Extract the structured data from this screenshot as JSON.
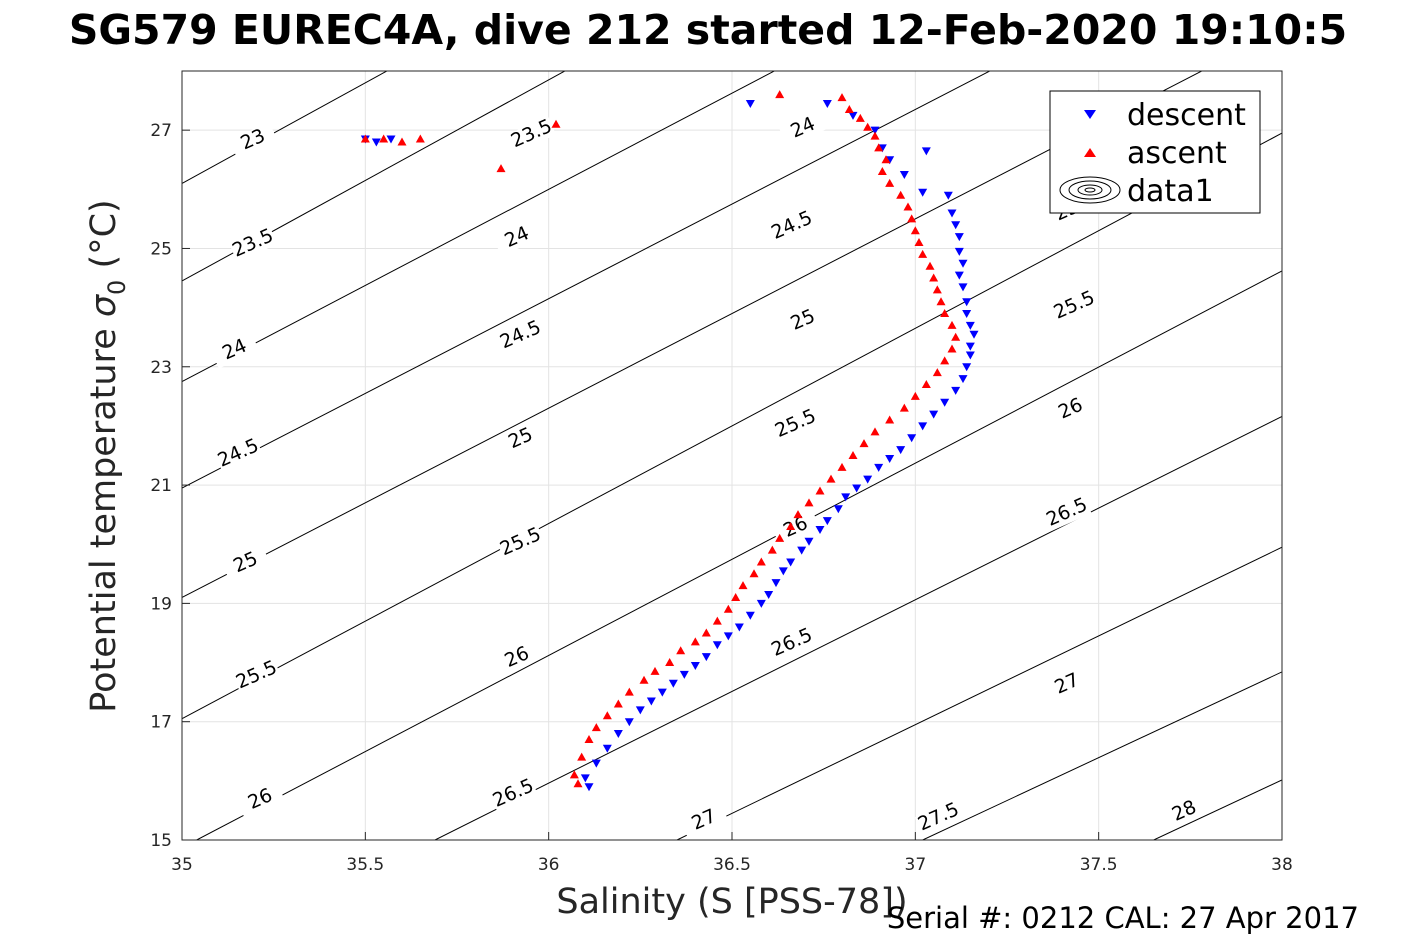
{
  "chart_data": {
    "type": "scatter",
    "title": "SG579 EUREC4A, dive 212 started 12-Feb-2020 19:10:5",
    "xlabel": "Salinity (S [PSS-78])",
    "ylabel_main": "Potential temperature ",
    "ylabel_sigma": "σ",
    "ylabel_sub": "0",
    "ylabel_unit": " (°C)",
    "xlim": [
      35,
      38
    ],
    "ylim": [
      15,
      28
    ],
    "xticks": [
      "35",
      "35.5",
      "36",
      "36.5",
      "37",
      "37.5",
      "38"
    ],
    "yticks": [
      "15",
      "17",
      "19",
      "21",
      "23",
      "25",
      "27"
    ],
    "grid": true,
    "legend_position": "top-right",
    "legend": [
      "descent",
      "ascent",
      "data1"
    ],
    "footer": "Serial #: 0212  CAL: 27 Apr 2017",
    "colors": {
      "descent": "#0000ff",
      "ascent": "#ff0000",
      "contour": "#000000"
    },
    "contour_lines": [
      {
        "level": 23,
        "start": [
          35,
          26.1
        ],
        "slope": 3.4
      },
      {
        "level": 23.5,
        "start": [
          35,
          24.45
        ],
        "slope": 3.4
      },
      {
        "level": 24,
        "start": [
          35,
          22.75
        ],
        "slope": 3.25
      },
      {
        "level": 24.5,
        "start": [
          35,
          20.95
        ],
        "slope": 3.2
      },
      {
        "level": 25,
        "start": [
          35,
          19.1
        ],
        "slope": 3.2
      },
      {
        "level": 25.5,
        "start": [
          35,
          17.05
        ],
        "slope": 3.3
      },
      {
        "level": 26,
        "start": [
          35.04,
          15.0
        ],
        "slope": 3.25
      },
      {
        "level": 26.5,
        "start": [
          35.69,
          15.0
        ],
        "slope": 3.1
      },
      {
        "level": 27,
        "start": [
          36.35,
          15.0
        ],
        "slope": 3.0
      },
      {
        "level": 27.5,
        "start": [
          37.02,
          15.0
        ],
        "slope": 2.9
      },
      {
        "level": 28,
        "start": [
          37.65,
          15.0
        ],
        "slope": 2.9
      }
    ],
    "contour_labels": [
      {
        "text": "23",
        "x": 35.2,
        "y": 26.75,
        "rot": -24
      },
      {
        "text": "23.5",
        "x": 35.96,
        "y": 26.85,
        "rot": -24
      },
      {
        "text": "24",
        "x": 36.7,
        "y": 26.95,
        "rot": -24
      },
      {
        "text": "23.5",
        "x": 35.2,
        "y": 25.0,
        "rot": -24
      },
      {
        "text": "24",
        "x": 35.92,
        "y": 25.1,
        "rot": -24
      },
      {
        "text": "24.5",
        "x": 36.67,
        "y": 25.3,
        "rot": -24
      },
      {
        "text": "25",
        "x": 37.42,
        "y": 25.55,
        "rot": -24
      },
      {
        "text": "24",
        "x": 35.15,
        "y": 23.2,
        "rot": -24
      },
      {
        "text": "24.5",
        "x": 35.93,
        "y": 23.45,
        "rot": -24
      },
      {
        "text": "25",
        "x": 36.7,
        "y": 23.7,
        "rot": -24
      },
      {
        "text": "25.5",
        "x": 37.44,
        "y": 23.95,
        "rot": -24
      },
      {
        "text": "24.5",
        "x": 35.16,
        "y": 21.45,
        "rot": -24
      },
      {
        "text": "25",
        "x": 35.93,
        "y": 21.7,
        "rot": -24
      },
      {
        "text": "25.5",
        "x": 36.68,
        "y": 21.95,
        "rot": -24
      },
      {
        "text": "26",
        "x": 37.43,
        "y": 22.2,
        "rot": -24
      },
      {
        "text": "25",
        "x": 35.18,
        "y": 19.6,
        "rot": -24
      },
      {
        "text": "25.5",
        "x": 35.93,
        "y": 19.95,
        "rot": -24
      },
      {
        "text": "26",
        "x": 36.68,
        "y": 20.2,
        "rot": -24
      },
      {
        "text": "26.5",
        "x": 37.42,
        "y": 20.45,
        "rot": -24
      },
      {
        "text": "27",
        "x": 38.84,
        "y": 19.75,
        "rot": -24
      },
      {
        "text": "25.5",
        "x": 35.21,
        "y": 17.7,
        "rot": -24
      },
      {
        "text": "26",
        "x": 35.92,
        "y": 18.0,
        "rot": -24
      },
      {
        "text": "26.5",
        "x": 36.67,
        "y": 18.25,
        "rot": -24
      },
      {
        "text": "27",
        "x": 37.42,
        "y": 17.55,
        "rot": -24
      },
      {
        "text": "27.5",
        "x": 38.8,
        "y": 17.75,
        "rot": -24
      },
      {
        "text": "26",
        "x": 35.22,
        "y": 15.6,
        "rot": -24
      },
      {
        "text": "26.5",
        "x": 35.91,
        "y": 15.7,
        "rot": -24
      },
      {
        "text": "27",
        "x": 36.43,
        "y": 15.25,
        "rot": -24
      },
      {
        "text": "27.5",
        "x": 37.07,
        "y": 15.3,
        "rot": -24
      },
      {
        "text": "28",
        "x": 37.74,
        "y": 15.4,
        "rot": -24
      }
    ],
    "series": [
      {
        "name": "descent",
        "marker": "triangle-down",
        "points": [
          [
            36.55,
            27.45
          ],
          [
            36.76,
            27.45
          ],
          [
            36.83,
            27.25
          ],
          [
            36.89,
            27.0
          ],
          [
            36.91,
            26.7
          ],
          [
            36.93,
            26.5
          ],
          [
            36.97,
            26.25
          ],
          [
            37.03,
            26.65
          ],
          [
            37.02,
            25.95
          ],
          [
            37.09,
            25.9
          ],
          [
            37.1,
            25.6
          ],
          [
            37.11,
            25.4
          ],
          [
            37.12,
            25.2
          ],
          [
            37.12,
            24.95
          ],
          [
            37.13,
            24.75
          ],
          [
            37.12,
            24.55
          ],
          [
            37.13,
            24.35
          ],
          [
            37.14,
            24.1
          ],
          [
            37.14,
            23.9
          ],
          [
            37.15,
            23.7
          ],
          [
            37.16,
            23.55
          ],
          [
            37.15,
            23.35
          ],
          [
            37.15,
            23.2
          ],
          [
            37.14,
            23.0
          ],
          [
            37.13,
            22.8
          ],
          [
            37.11,
            22.6
          ],
          [
            37.08,
            22.4
          ],
          [
            37.05,
            22.2
          ],
          [
            37.02,
            22.0
          ],
          [
            36.99,
            21.8
          ],
          [
            36.96,
            21.6
          ],
          [
            36.93,
            21.45
          ],
          [
            36.9,
            21.3
          ],
          [
            36.87,
            21.1
          ],
          [
            36.84,
            20.95
          ],
          [
            36.81,
            20.8
          ],
          [
            36.79,
            20.6
          ],
          [
            36.76,
            20.4
          ],
          [
            36.74,
            20.25
          ],
          [
            36.71,
            20.05
          ],
          [
            36.69,
            19.9
          ],
          [
            36.66,
            19.7
          ],
          [
            36.64,
            19.55
          ],
          [
            36.62,
            19.35
          ],
          [
            36.6,
            19.15
          ],
          [
            36.58,
            19.0
          ],
          [
            36.55,
            18.8
          ],
          [
            36.52,
            18.6
          ],
          [
            36.49,
            18.45
          ],
          [
            36.46,
            18.3
          ],
          [
            36.43,
            18.1
          ],
          [
            36.4,
            17.95
          ],
          [
            36.37,
            17.8
          ],
          [
            36.34,
            17.65
          ],
          [
            36.31,
            17.5
          ],
          [
            36.28,
            17.35
          ],
          [
            36.25,
            17.2
          ],
          [
            36.22,
            17.0
          ],
          [
            36.19,
            16.8
          ],
          [
            36.16,
            16.55
          ],
          [
            36.13,
            16.3
          ],
          [
            36.1,
            16.05
          ],
          [
            36.11,
            15.9
          ],
          [
            35.5,
            26.85
          ],
          [
            35.53,
            26.8
          ],
          [
            35.57,
            26.85
          ]
        ]
      },
      {
        "name": "ascent",
        "marker": "triangle-up",
        "points": [
          [
            36.63,
            27.6
          ],
          [
            36.8,
            27.55
          ],
          [
            36.82,
            27.35
          ],
          [
            36.85,
            27.2
          ],
          [
            36.87,
            27.05
          ],
          [
            36.89,
            26.9
          ],
          [
            36.9,
            26.7
          ],
          [
            36.92,
            26.5
          ],
          [
            36.91,
            26.3
          ],
          [
            36.93,
            26.1
          ],
          [
            36.96,
            25.9
          ],
          [
            36.98,
            25.7
          ],
          [
            36.99,
            25.5
          ],
          [
            37.0,
            25.3
          ],
          [
            37.01,
            25.1
          ],
          [
            37.02,
            24.9
          ],
          [
            37.04,
            24.7
          ],
          [
            37.05,
            24.5
          ],
          [
            37.06,
            24.3
          ],
          [
            37.07,
            24.1
          ],
          [
            37.08,
            23.9
          ],
          [
            37.1,
            23.7
          ],
          [
            37.11,
            23.5
          ],
          [
            37.1,
            23.3
          ],
          [
            37.08,
            23.1
          ],
          [
            37.06,
            22.9
          ],
          [
            37.03,
            22.7
          ],
          [
            37.0,
            22.5
          ],
          [
            36.97,
            22.3
          ],
          [
            36.93,
            22.1
          ],
          [
            36.89,
            21.9
          ],
          [
            36.86,
            21.7
          ],
          [
            36.83,
            21.5
          ],
          [
            36.8,
            21.3
          ],
          [
            36.77,
            21.1
          ],
          [
            36.74,
            20.9
          ],
          [
            36.71,
            20.7
          ],
          [
            36.68,
            20.5
          ],
          [
            36.66,
            20.3
          ],
          [
            36.63,
            20.1
          ],
          [
            36.61,
            19.9
          ],
          [
            36.58,
            19.7
          ],
          [
            36.56,
            19.5
          ],
          [
            36.53,
            19.3
          ],
          [
            36.51,
            19.1
          ],
          [
            36.49,
            18.9
          ],
          [
            36.46,
            18.7
          ],
          [
            36.43,
            18.5
          ],
          [
            36.4,
            18.35
          ],
          [
            36.36,
            18.2
          ],
          [
            36.33,
            18.0
          ],
          [
            36.29,
            17.85
          ],
          [
            36.26,
            17.7
          ],
          [
            36.22,
            17.5
          ],
          [
            36.19,
            17.3
          ],
          [
            36.16,
            17.1
          ],
          [
            36.13,
            16.9
          ],
          [
            36.11,
            16.7
          ],
          [
            36.09,
            16.4
          ],
          [
            36.07,
            16.1
          ],
          [
            36.08,
            15.95
          ],
          [
            35.5,
            26.85
          ],
          [
            35.55,
            26.85
          ],
          [
            35.6,
            26.8
          ],
          [
            35.65,
            26.85
          ],
          [
            35.87,
            26.35
          ],
          [
            36.02,
            27.1
          ]
        ]
      }
    ]
  }
}
